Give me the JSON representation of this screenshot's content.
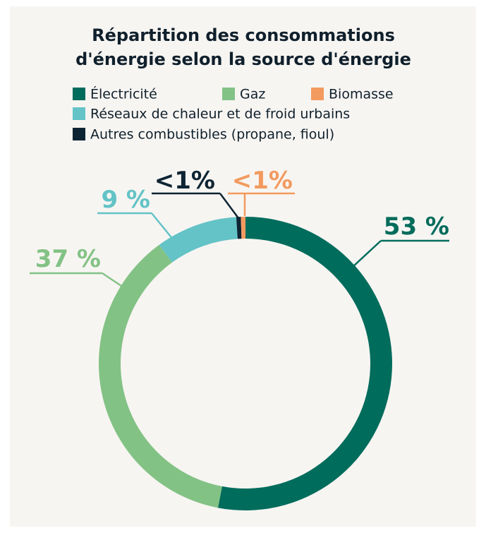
{
  "chart_data": {
    "type": "donut",
    "title": [
      "Répartition des consommations",
      "d'énergie selon la source d'énergie"
    ],
    "categories": [
      "Électricité",
      "Gaz",
      "Réseaux de chaleur et de froid urbains",
      "Autres combustibles (propane, fioul)",
      "Biomasse"
    ],
    "values": [
      53,
      37,
      9,
      0.5,
      0.5
    ],
    "value_labels": [
      "53 %",
      "37 %",
      "9 %",
      "<1%",
      "<1%"
    ],
    "colors": [
      "#006c5c",
      "#83c285",
      "#63c3c6",
      "#0d2433",
      "#f29a5f"
    ]
  }
}
